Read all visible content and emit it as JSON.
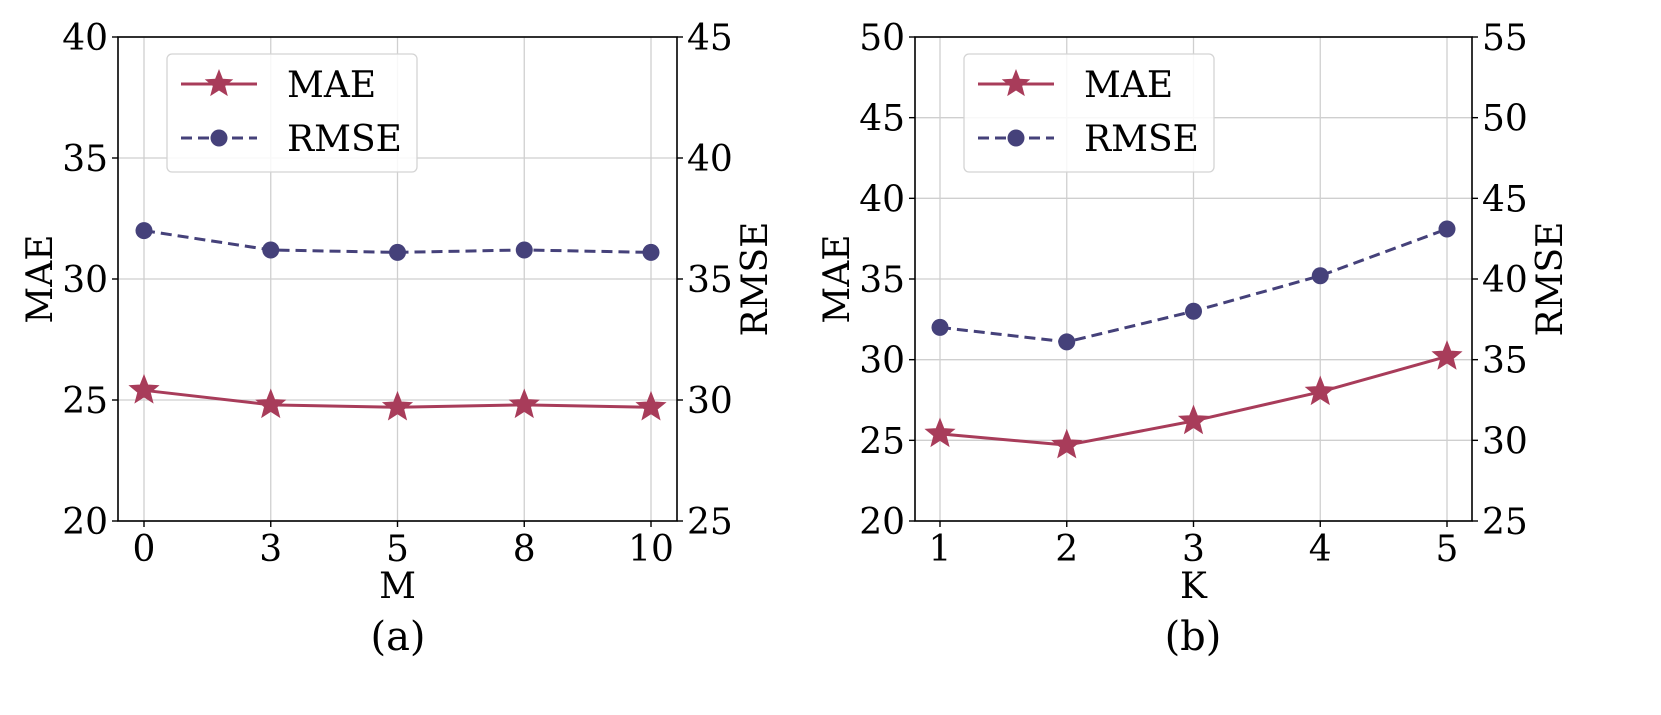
{
  "chart_data": [
    {
      "type": "line",
      "caption": "(a)",
      "xlabel": "M",
      "ylabel": "MAE",
      "ylabel_right": "RMSE",
      "categories": [
        "0",
        "3",
        "5",
        "8",
        "10"
      ],
      "ylim": [
        20,
        40
      ],
      "yticks": [
        20,
        25,
        30,
        35,
        40
      ],
      "ylim_right": [
        25,
        45
      ],
      "yticks_right": [
        25,
        30,
        35,
        40,
        45
      ],
      "grid": true,
      "legend": "top-left",
      "series": [
        {
          "name": "MAE",
          "axis": "left",
          "marker": "star",
          "dash": "solid",
          "color": "#a83c5a",
          "values": [
            25.4,
            24.8,
            24.7,
            24.8,
            24.7
          ]
        },
        {
          "name": "RMSE",
          "axis": "right",
          "marker": "circle",
          "dash": "dashed",
          "color": "#45417a",
          "values": [
            37.0,
            36.2,
            36.1,
            36.2,
            36.1
          ]
        }
      ]
    },
    {
      "type": "line",
      "caption": "(b)",
      "xlabel": "K",
      "ylabel": "MAE",
      "ylabel_right": "RMSE",
      "categories": [
        "1",
        "2",
        "3",
        "4",
        "5"
      ],
      "ylim": [
        20,
        50
      ],
      "yticks": [
        20,
        25,
        30,
        35,
        40,
        45,
        50
      ],
      "ylim_right": [
        25,
        55
      ],
      "yticks_right": [
        25,
        30,
        35,
        40,
        45,
        50,
        55
      ],
      "grid": true,
      "legend": "top-left",
      "series": [
        {
          "name": "MAE",
          "axis": "left",
          "marker": "star",
          "dash": "solid",
          "color": "#a83c5a",
          "values": [
            25.4,
            24.7,
            26.2,
            28.0,
            30.2
          ]
        },
        {
          "name": "RMSE",
          "axis": "right",
          "marker": "circle",
          "dash": "dashed",
          "color": "#45417a",
          "values": [
            37.0,
            36.1,
            38.0,
            40.2,
            43.1
          ]
        }
      ]
    }
  ]
}
